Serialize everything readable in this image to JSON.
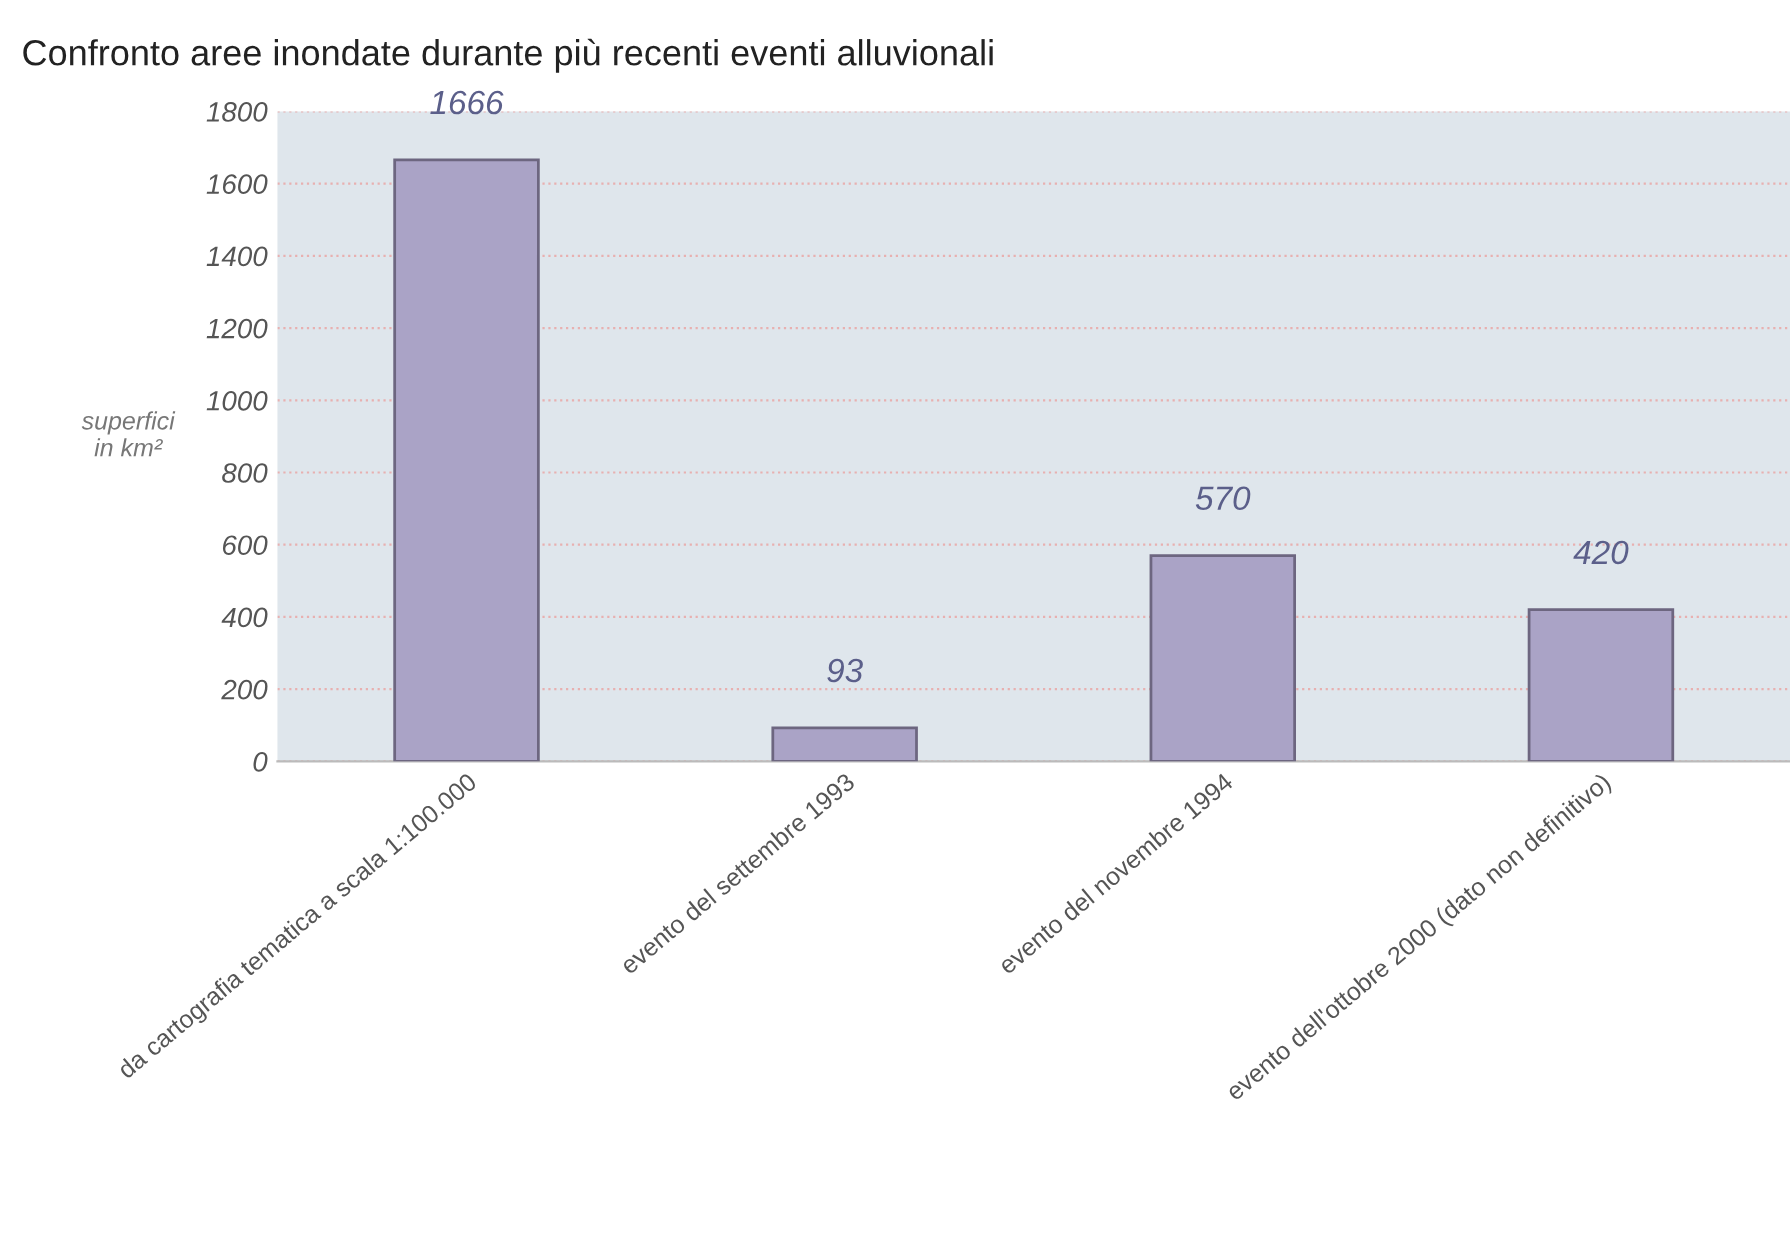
{
  "chart_data": {
    "type": "bar",
    "title": "Confronto aree inondate durante più recenti eventi alluvionali",
    "ylabel": "superfici\nin km²",
    "categories": [
      "da cartografia tematica a scala 1:100.000",
      "evento del settembre 1993",
      "evento del novembre 1994",
      "evento dell'ottobre 2000 (dato non definitivo)"
    ],
    "values": [
      1666,
      93,
      570,
      420
    ],
    "color": "#aaa3c6",
    "ylim": [
      0,
      1800
    ],
    "yticks": [
      0,
      200,
      400,
      600,
      800,
      1000,
      1200,
      1400,
      1600,
      1800
    ],
    "grid": "y",
    "data_labels": true
  }
}
